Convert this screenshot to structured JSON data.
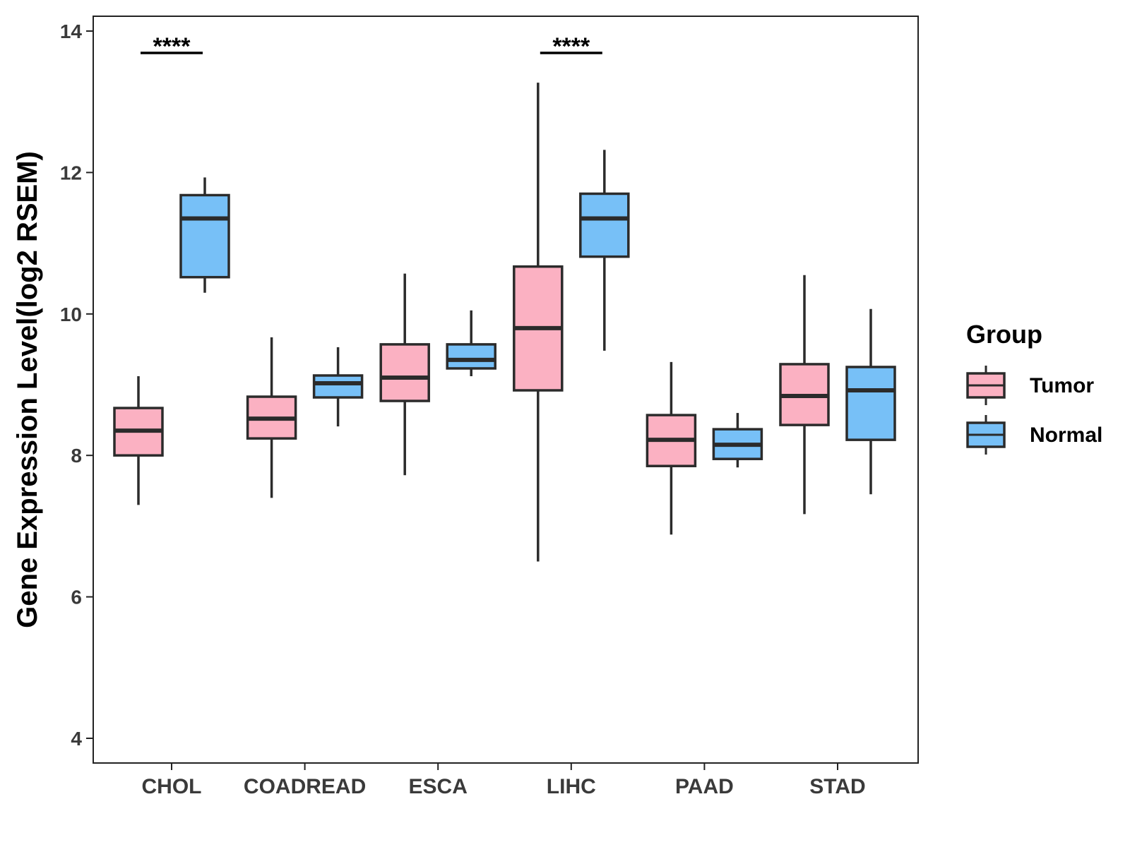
{
  "chart_data": {
    "type": "boxplot",
    "title": "",
    "xlabel": "",
    "ylabel": "Gene Expression Level(log2 RSEM)",
    "ylim": [
      3.7,
      14.2
    ],
    "yticks": [
      4,
      6,
      8,
      10,
      12,
      14
    ],
    "grid": false,
    "legend_title": "Group",
    "legend_position": "right",
    "categories": [
      "CHOL",
      "COADREAD",
      "ESCA",
      "LIHC",
      "PAAD",
      "STAD"
    ],
    "series": [
      {
        "name": "Tumor",
        "color": "#FBB1C2",
        "boxes": [
          {
            "min": 7.3,
            "q1": 8.0,
            "median": 8.35,
            "q3": 8.67,
            "max": 9.12
          },
          {
            "min": 7.4,
            "q1": 8.24,
            "median": 8.52,
            "q3": 8.83,
            "max": 9.67
          },
          {
            "min": 7.72,
            "q1": 8.77,
            "median": 9.1,
            "q3": 9.57,
            "max": 10.57
          },
          {
            "min": 6.5,
            "q1": 8.92,
            "median": 9.8,
            "q3": 10.67,
            "max": 13.27
          },
          {
            "min": 6.88,
            "q1": 7.85,
            "median": 8.22,
            "q3": 8.57,
            "max": 9.32
          },
          {
            "min": 7.17,
            "q1": 8.43,
            "median": 8.84,
            "q3": 9.29,
            "max": 10.55
          }
        ]
      },
      {
        "name": "Normal",
        "color": "#77C0F7",
        "boxes": [
          {
            "min": 10.3,
            "q1": 10.52,
            "median": 11.35,
            "q3": 11.68,
            "max": 11.93
          },
          {
            "min": 8.41,
            "q1": 8.82,
            "median": 9.02,
            "q3": 9.13,
            "max": 9.53
          },
          {
            "min": 9.12,
            "q1": 9.23,
            "median": 9.35,
            "q3": 9.57,
            "max": 10.05
          },
          {
            "min": 9.48,
            "q1": 10.81,
            "median": 11.35,
            "q3": 11.7,
            "max": 12.32
          },
          {
            "min": 7.83,
            "q1": 7.95,
            "median": 8.15,
            "q3": 8.37,
            "max": 8.6
          },
          {
            "min": 7.45,
            "q1": 8.22,
            "median": 8.92,
            "q3": 9.25,
            "max": 10.07
          }
        ]
      }
    ],
    "significance": [
      {
        "category": "CHOL",
        "label": "****"
      },
      {
        "category": "LIHC",
        "label": "****"
      }
    ]
  },
  "colors": {
    "stroke": "#2b2b2b",
    "tumor": "#FBB1C2",
    "normal": "#77C0F7"
  }
}
